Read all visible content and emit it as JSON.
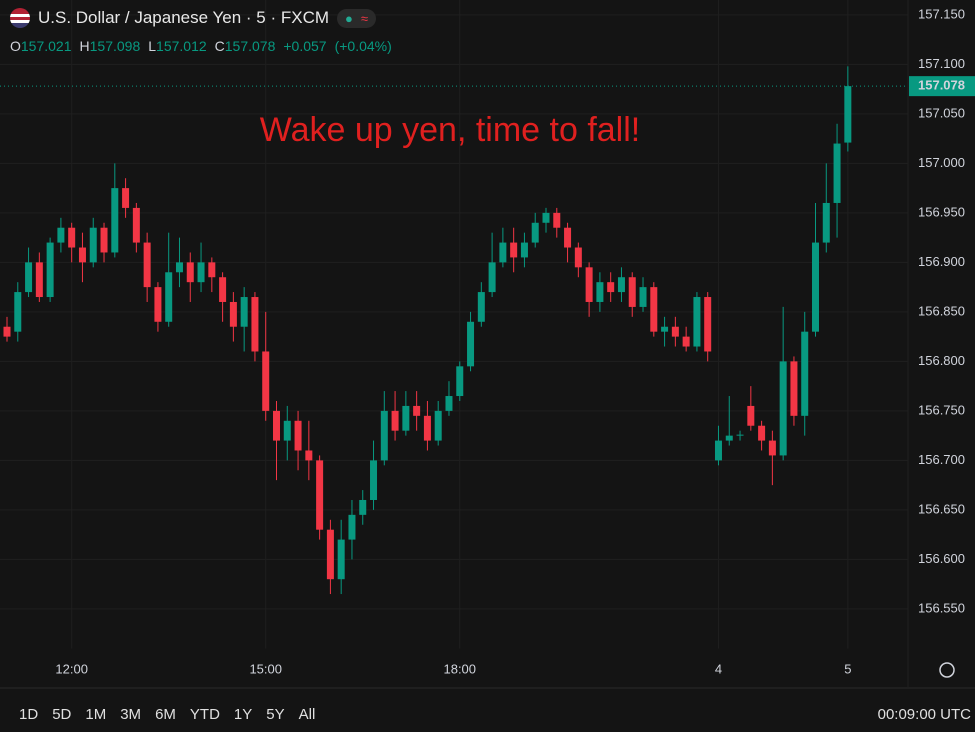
{
  "chart_data": {
    "type": "candlestick",
    "title": "U.S. Dollar / Japanese Yen · 5 · FXCM",
    "ohlc": [
      {
        "label": "O",
        "value": 157.021
      },
      {
        "label": "H",
        "value": 157.098
      },
      {
        "label": "L",
        "value": 157.012
      },
      {
        "label": "C",
        "value": 157.078
      }
    ],
    "change": "+0.057",
    "change_pct": "(+0.04%)",
    "annotation": "Wake up yen, time to fall!",
    "last_price": 157.078,
    "up_color": "#089981",
    "down_color": "#f23645",
    "grid": true,
    "ylim": [
      156.51,
      157.165
    ],
    "yticks": [
      {
        "value": 157.15,
        "label": "157.150"
      },
      {
        "value": 157.1,
        "label": "157.100"
      },
      {
        "value": 157.05,
        "label": "157.050"
      },
      {
        "value": 157.0,
        "label": "157.000"
      },
      {
        "value": 156.95,
        "label": "156.950"
      },
      {
        "value": 156.9,
        "label": "156.900"
      },
      {
        "value": 156.85,
        "label": "156.850"
      },
      {
        "value": 156.8,
        "label": "156.800"
      },
      {
        "value": 156.75,
        "label": "156.750"
      },
      {
        "value": 156.7,
        "label": "156.700"
      },
      {
        "value": 156.65,
        "label": "156.650"
      },
      {
        "value": 156.6,
        "label": "156.600"
      },
      {
        "value": 156.55,
        "label": "156.550"
      }
    ],
    "categories": [
      null,
      null,
      null,
      null,
      null,
      null,
      "12:00",
      null,
      null,
      null,
      null,
      null,
      null,
      null,
      null,
      null,
      null,
      null,
      null,
      null,
      null,
      null,
      null,
      null,
      "15:00",
      null,
      null,
      null,
      null,
      null,
      null,
      null,
      null,
      null,
      null,
      null,
      null,
      null,
      null,
      null,
      null,
      null,
      "18:00",
      null,
      null,
      null,
      null,
      null,
      null,
      null,
      null,
      null,
      null,
      null,
      null,
      null,
      null,
      null,
      null,
      null,
      null,
      null,
      null,
      null,
      null,
      null,
      "4",
      null,
      null,
      null,
      null,
      null,
      null,
      null,
      null,
      null,
      null,
      null,
      "5"
    ],
    "open": [
      156.835,
      156.83,
      156.87,
      156.9,
      156.865,
      156.92,
      156.935,
      156.915,
      156.9,
      156.935,
      156.91,
      156.975,
      156.955,
      156.92,
      156.875,
      156.84,
      156.89,
      156.9,
      156.88,
      156.9,
      156.885,
      156.86,
      156.835,
      156.865,
      156.81,
      156.75,
      156.72,
      156.74,
      156.71,
      156.7,
      156.63,
      156.58,
      156.62,
      156.645,
      156.66,
      156.7,
      156.75,
      156.73,
      156.755,
      156.745,
      156.72,
      156.75,
      156.765,
      156.795,
      156.84,
      156.87,
      156.9,
      156.92,
      156.905,
      156.92,
      156.94,
      156.95,
      156.935,
      156.915,
      156.895,
      156.86,
      156.88,
      156.87,
      156.885,
      156.855,
      156.875,
      156.83,
      156.835,
      156.825,
      156.815,
      156.865,
      156.7,
      156.72,
      156.725,
      156.755,
      156.735,
      156.72,
      156.705,
      156.8,
      156.745,
      156.83,
      156.92,
      156.96,
      157.021
    ],
    "high": [
      156.845,
      156.88,
      156.915,
      156.91,
      156.925,
      156.945,
      156.94,
      156.93,
      156.945,
      156.94,
      157.0,
      156.985,
      156.96,
      156.93,
      156.88,
      156.93,
      156.925,
      156.91,
      156.92,
      156.905,
      156.89,
      156.87,
      156.875,
      156.87,
      156.85,
      156.76,
      156.755,
      156.75,
      156.74,
      156.705,
      156.64,
      156.64,
      156.66,
      156.67,
      156.72,
      156.77,
      156.77,
      156.77,
      156.77,
      156.76,
      156.76,
      156.78,
      156.8,
      156.85,
      156.88,
      156.93,
      156.935,
      156.935,
      156.93,
      156.95,
      156.955,
      156.955,
      156.94,
      156.92,
      156.9,
      156.89,
      156.89,
      156.895,
      156.89,
      156.885,
      156.88,
      156.845,
      156.845,
      156.835,
      156.87,
      156.87,
      156.735,
      156.765,
      156.73,
      156.775,
      156.74,
      156.73,
      156.855,
      156.805,
      156.85,
      156.96,
      157.0,
      157.04,
      157.098
    ],
    "low": [
      156.82,
      156.82,
      156.865,
      156.86,
      156.86,
      156.91,
      156.9,
      156.88,
      156.895,
      156.9,
      156.905,
      156.945,
      156.91,
      156.86,
      156.83,
      156.835,
      156.875,
      156.86,
      156.87,
      156.87,
      156.84,
      156.82,
      156.81,
      156.8,
      156.74,
      156.68,
      156.7,
      156.69,
      156.68,
      156.62,
      156.565,
      156.565,
      156.6,
      156.635,
      156.65,
      156.695,
      156.72,
      156.725,
      156.73,
      156.71,
      156.715,
      156.745,
      156.76,
      156.79,
      156.835,
      156.865,
      156.895,
      156.89,
      156.895,
      156.915,
      156.93,
      156.925,
      156.9,
      156.885,
      156.845,
      156.85,
      156.86,
      156.86,
      156.845,
      156.85,
      156.825,
      156.815,
      156.815,
      156.81,
      156.81,
      156.8,
      156.695,
      156.715,
      156.72,
      156.73,
      156.71,
      156.675,
      156.7,
      156.735,
      156.725,
      156.825,
      156.91,
      156.925,
      157.012
    ],
    "close": [
      156.825,
      156.87,
      156.9,
      156.865,
      156.92,
      156.935,
      156.915,
      156.9,
      156.935,
      156.91,
      156.975,
      156.955,
      156.92,
      156.875,
      156.84,
      156.89,
      156.9,
      156.88,
      156.9,
      156.885,
      156.86,
      156.835,
      156.865,
      156.81,
      156.75,
      156.72,
      156.74,
      156.71,
      156.7,
      156.63,
      156.58,
      156.62,
      156.645,
      156.66,
      156.7,
      156.75,
      156.73,
      156.755,
      156.745,
      156.72,
      156.75,
      156.765,
      156.795,
      156.84,
      156.87,
      156.9,
      156.92,
      156.905,
      156.92,
      156.94,
      156.95,
      156.935,
      156.915,
      156.895,
      156.86,
      156.88,
      156.87,
      156.885,
      156.855,
      156.875,
      156.83,
      156.835,
      156.825,
      156.815,
      156.865,
      156.81,
      156.72,
      156.725,
      156.726,
      156.735,
      156.72,
      156.705,
      156.8,
      156.745,
      156.83,
      156.92,
      156.96,
      157.02,
      157.078
    ]
  },
  "toolbar": {
    "ranges": [
      "1D",
      "5D",
      "1M",
      "3M",
      "6M",
      "YTD",
      "1Y",
      "5Y",
      "All"
    ],
    "clock": "00:09:00 UTC"
  }
}
